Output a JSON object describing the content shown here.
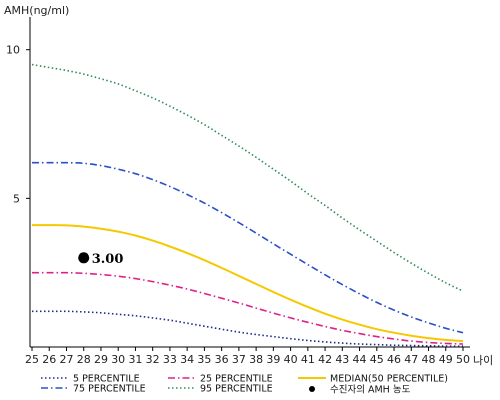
{
  "chart_data": {
    "type": "line",
    "ylabel": "AMH(ng/ml)",
    "xlabel": "나이",
    "x": [
      25,
      26,
      27,
      28,
      29,
      30,
      31,
      32,
      33,
      34,
      35,
      36,
      37,
      38,
      39,
      40,
      41,
      42,
      43,
      44,
      45,
      46,
      47,
      48,
      49,
      50
    ],
    "xlim": [
      25,
      50
    ],
    "ylim": [
      0,
      11.1
    ],
    "yticks": [
      5,
      10
    ],
    "grid": false,
    "legend_position": "bottom",
    "series": [
      {
        "name": "5 PERCENTILE",
        "color": "#1a2a8c",
        "dash": "dotted",
        "values": [
          1.2,
          1.2,
          1.2,
          1.18,
          1.15,
          1.1,
          1.05,
          0.98,
          0.9,
          0.8,
          0.7,
          0.6,
          0.5,
          0.42,
          0.35,
          0.28,
          0.22,
          0.17,
          0.13,
          0.1,
          0.08,
          0.06,
          0.05,
          0.04,
          0.03,
          0.03
        ]
      },
      {
        "name": "25 PERCENTILE",
        "color": "#e0208a",
        "dash": "dashdot",
        "values": [
          2.5,
          2.5,
          2.5,
          2.48,
          2.44,
          2.38,
          2.3,
          2.2,
          2.08,
          1.95,
          1.8,
          1.64,
          1.48,
          1.31,
          1.14,
          0.98,
          0.83,
          0.69,
          0.56,
          0.45,
          0.35,
          0.27,
          0.2,
          0.15,
          0.12,
          0.1
        ]
      },
      {
        "name": "MEDIAN(50 PERCENTILE)",
        "color": "#f5c800",
        "dash": "solid",
        "values": [
          4.1,
          4.1,
          4.09,
          4.05,
          3.98,
          3.88,
          3.75,
          3.58,
          3.38,
          3.16,
          2.92,
          2.66,
          2.39,
          2.12,
          1.85,
          1.59,
          1.35,
          1.12,
          0.92,
          0.75,
          0.6,
          0.48,
          0.38,
          0.3,
          0.24,
          0.2
        ]
      },
      {
        "name": "75 PERCENTILE",
        "color": "#2a50c8",
        "dash": "dashdot",
        "values": [
          6.2,
          6.2,
          6.2,
          6.18,
          6.1,
          5.98,
          5.83,
          5.63,
          5.4,
          5.13,
          4.84,
          4.52,
          4.18,
          3.83,
          3.47,
          3.12,
          2.77,
          2.43,
          2.1,
          1.79,
          1.5,
          1.24,
          1.01,
          0.81,
          0.63,
          0.48
        ]
      },
      {
        "name": "95 PERCENTILE",
        "color": "#2e8b57",
        "dash": "dotted",
        "values": [
          9.5,
          9.4,
          9.3,
          9.18,
          9.02,
          8.85,
          8.62,
          8.38,
          8.1,
          7.8,
          7.48,
          7.12,
          6.76,
          6.38,
          5.98,
          5.58,
          5.16,
          4.76,
          4.34,
          3.94,
          3.56,
          3.18,
          2.82,
          2.48,
          2.16,
          1.88
        ]
      }
    ],
    "marker": {
      "label": "3.00",
      "x": 28.0,
      "y": 3.0,
      "legend": "수진자의 AMH 농도",
      "color": "#000000"
    }
  }
}
